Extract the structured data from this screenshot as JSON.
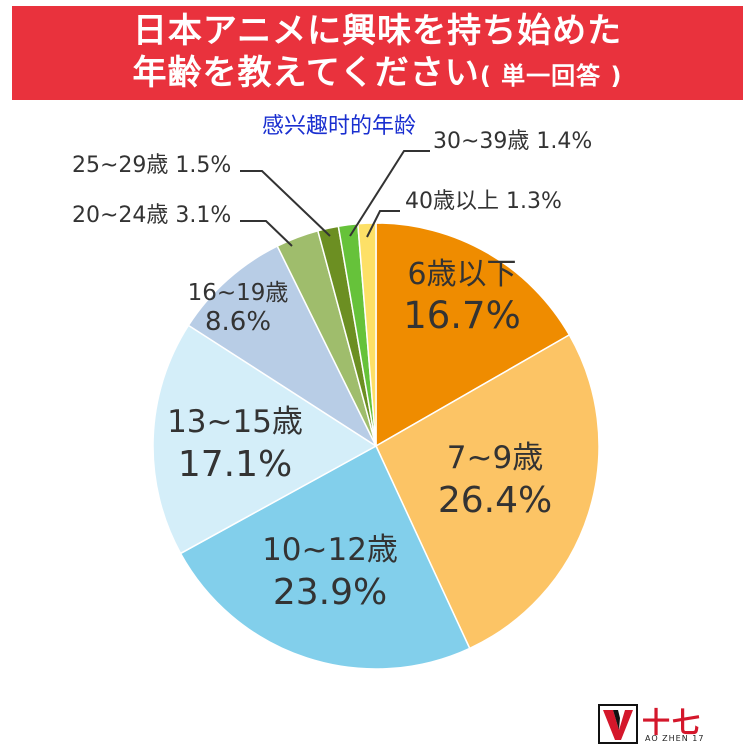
{
  "header": {
    "title_line1": "日本アニメに興味を持ち始めた",
    "title_line2_main": "年齢を教えてください",
    "title_line2_paren": "( 単一回答 )",
    "banner_color": "#e9323d"
  },
  "overlay_caption": "感兴趣时的年龄",
  "chart_data": {
    "type": "pie",
    "title": "日本アニメに興味を持ち始めた年齢を教えてください ( 単一回答 )",
    "start": "12 o'clock, clockwise",
    "slices": [
      {
        "label": "6歳以下",
        "value": 16.7,
        "display": "16.7%",
        "color": "#ef8c00",
        "text_color": "#333333",
        "label_position": "inside"
      },
      {
        "label": "7~9歳",
        "value": 26.4,
        "display": "26.4%",
        "color": "#fcc465",
        "text_color": "#333333",
        "label_position": "inside"
      },
      {
        "label": "10~12歳",
        "value": 23.9,
        "display": "23.9%",
        "color": "#82cfeb",
        "text_color": "#333333",
        "label_position": "inside"
      },
      {
        "label": "13~15歳",
        "value": 17.1,
        "display": "17.1%",
        "color": "#d4eef9",
        "text_color": "#333333",
        "label_position": "inside"
      },
      {
        "label": "16~19歳",
        "value": 8.6,
        "display": "8.6%",
        "color": "#b8cde6",
        "text_color": "#333333",
        "label_position": "inside"
      },
      {
        "label": "20~24歳",
        "value": 3.1,
        "display": "3.1%",
        "color": "#9fbd6c",
        "text_color": "#333333",
        "label_position": "outside-left"
      },
      {
        "label": "25~29歳",
        "value": 1.5,
        "display": "1.5%",
        "color": "#6c8f22",
        "text_color": "#333333",
        "label_position": "outside-left"
      },
      {
        "label": "30~39歳",
        "value": 1.4,
        "display": "1.4%",
        "color": "#66c23a",
        "text_color": "#333333",
        "label_position": "outside-right"
      },
      {
        "label": "40歳以上",
        "value": 1.3,
        "display": "1.3%",
        "color": "#fde067",
        "text_color": "#333333",
        "label_position": "outside-right"
      }
    ]
  },
  "watermark": {
    "name": "十七",
    "sub": "AO ZHEN 17",
    "logo_icon": "v-shield-logo-icon",
    "brand_color": "#d4172b"
  }
}
